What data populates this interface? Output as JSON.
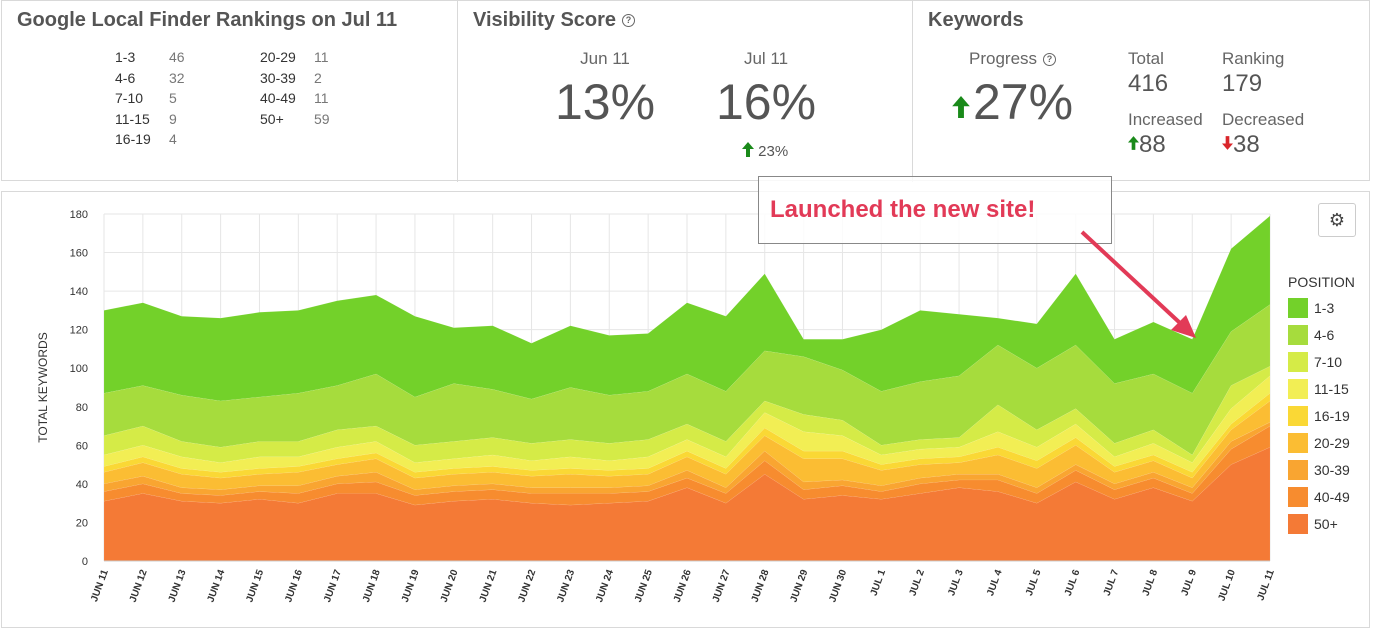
{
  "rankings_card": {
    "title": "Google Local Finder Rankings on Jul 11",
    "left": [
      {
        "range": "1-3",
        "count": "46"
      },
      {
        "range": "4-6",
        "count": "32"
      },
      {
        "range": "7-10",
        "count": "5"
      },
      {
        "range": "11-15",
        "count": "9"
      },
      {
        "range": "16-19",
        "count": "4"
      }
    ],
    "right": [
      {
        "range": "20-29",
        "count": "11"
      },
      {
        "range": "30-39",
        "count": "2"
      },
      {
        "range": "40-49",
        "count": "11"
      },
      {
        "range": "50+",
        "count": "59"
      }
    ]
  },
  "visibility_card": {
    "title": "Visibility Score",
    "help_icon": "question-circle-icon",
    "prev_label": "Jun 11",
    "prev_value": "13%",
    "curr_label": "Jul 11",
    "curr_value": "16%",
    "change": "23%",
    "change_icon": "arrow-up-icon",
    "up_color": "#1a8a1a"
  },
  "keywords_card": {
    "title": "Keywords",
    "progress_label": "Progress",
    "progress_value": "27%",
    "progress_icon": "arrow-up-icon",
    "total_label": "Total",
    "total_value": "416",
    "ranking_label": "Ranking",
    "ranking_value": "179",
    "increased_label": "Increased",
    "increased_value": "88",
    "decreased_label": "Decreased",
    "decreased_value": "38",
    "down_color": "#d9262b"
  },
  "settings_icon": "gear-icon",
  "annotation": {
    "text": "Launched the new site!",
    "color": "#e23a57"
  },
  "chart_data": {
    "type": "area",
    "stacked": true,
    "ylabel": "TOTAL KEYWORDS",
    "ylim": [
      0,
      180
    ],
    "yticks": [
      0,
      20,
      40,
      60,
      80,
      100,
      120,
      140,
      160,
      180
    ],
    "grid": true,
    "legend_title": "POSITION",
    "legend_position": "right",
    "categories": [
      "JUN 11",
      "JUN 12",
      "JUN 13",
      "JUN 14",
      "JUN 15",
      "JUN 16",
      "JUN 17",
      "JUN 18",
      "JUN 19",
      "JUN 20",
      "JUN 21",
      "JUN 22",
      "JUN 23",
      "JUN 24",
      "JUN 25",
      "JUN 26",
      "JUN 27",
      "JUN 28",
      "JUN 29",
      "JUN 30",
      "JUL 1",
      "JUL 2",
      "JUL 3",
      "JUL 4",
      "JUL 5",
      "JUL 6",
      "JUL 7",
      "JUL 8",
      "JUL 9",
      "JUL 10",
      "JUL 11"
    ],
    "series": [
      {
        "name": "50+",
        "color": "#f47a36",
        "values": [
          31,
          35,
          31,
          30,
          32,
          30,
          35,
          35,
          29,
          31,
          32,
          30,
          29,
          30,
          31,
          38,
          30,
          45,
          32,
          34,
          32,
          35,
          38,
          36,
          30,
          41,
          32,
          38,
          31,
          50,
          59
        ]
      },
      {
        "name": "40-49",
        "color": "#f78c2f",
        "values": [
          5,
          5,
          4,
          4,
          4,
          5,
          5,
          6,
          5,
          5,
          5,
          5,
          6,
          5,
          5,
          5,
          5,
          7,
          5,
          5,
          4,
          5,
          4,
          6,
          5,
          6,
          5,
          5,
          4,
          8,
          11
        ]
      },
      {
        "name": "30-39",
        "color": "#f9a531",
        "values": [
          4,
          4,
          3,
          3,
          3,
          4,
          4,
          5,
          3,
          3,
          3,
          3,
          3,
          3,
          3,
          4,
          3,
          5,
          4,
          3,
          3,
          3,
          3,
          3,
          3,
          3,
          3,
          3,
          3,
          4,
          2
        ]
      },
      {
        "name": "20-29",
        "color": "#fbbd33",
        "values": [
          6,
          7,
          7,
          6,
          6,
          7,
          6,
          7,
          6,
          6,
          6,
          6,
          7,
          6,
          6,
          7,
          7,
          8,
          12,
          11,
          8,
          7,
          6,
          10,
          10,
          10,
          6,
          6,
          5,
          6,
          11
        ]
      },
      {
        "name": "16-19",
        "color": "#fad835",
        "values": [
          3,
          3,
          3,
          3,
          3,
          3,
          3,
          3,
          3,
          3,
          3,
          3,
          3,
          3,
          3,
          3,
          3,
          4,
          4,
          4,
          3,
          3,
          3,
          4,
          4,
          4,
          3,
          3,
          3,
          3,
          4
        ]
      },
      {
        "name": "11-15",
        "color": "#f2ee54",
        "values": [
          6,
          6,
          6,
          5,
          6,
          5,
          6,
          6,
          5,
          5,
          6,
          5,
          6,
          5,
          6,
          6,
          6,
          8,
          10,
          8,
          5,
          5,
          5,
          8,
          7,
          7,
          5,
          6,
          5,
          8,
          9
        ]
      },
      {
        "name": "7-10",
        "color": "#d5eb47",
        "values": [
          10,
          10,
          8,
          8,
          8,
          8,
          9,
          8,
          9,
          9,
          9,
          9,
          9,
          9,
          9,
          8,
          8,
          6,
          9,
          8,
          5,
          5,
          5,
          14,
          9,
          8,
          7,
          7,
          4,
          12,
          5
        ]
      },
      {
        "name": "4-6",
        "color": "#a6dc3d",
        "values": [
          22,
          21,
          24,
          24,
          23,
          25,
          23,
          27,
          25,
          30,
          25,
          23,
          27,
          25,
          25,
          26,
          26,
          26,
          30,
          26,
          28,
          30,
          32,
          31,
          32,
          33,
          31,
          29,
          32,
          28,
          32
        ]
      },
      {
        "name": "1-3",
        "color": "#73d12a",
        "values": [
          43,
          43,
          41,
          43,
          44,
          43,
          44,
          41,
          42,
          29,
          33,
          29,
          32,
          31,
          30,
          37,
          39,
          40,
          9,
          16,
          32,
          37,
          32,
          14,
          23,
          37,
          23,
          27,
          28,
          43,
          46
        ]
      }
    ]
  }
}
